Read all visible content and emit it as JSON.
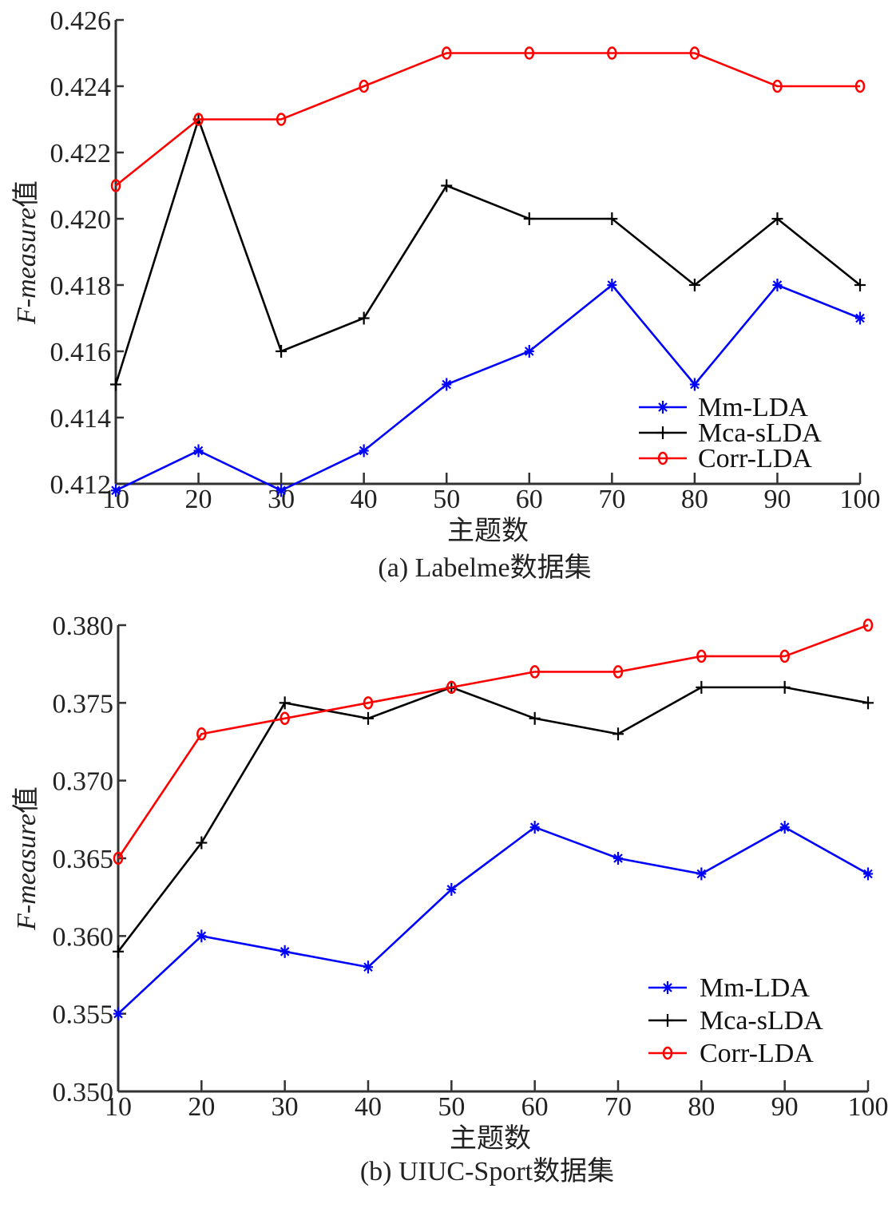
{
  "chart_data": [
    {
      "type": "line",
      "caption": "(a) Labelme数据集",
      "xlabel": "主题数",
      "ylabel_italic": "F-measure",
      "ylabel_suffix": "值",
      "x": [
        10,
        20,
        30,
        40,
        50,
        60,
        70,
        80,
        90,
        100
      ],
      "xticks": [
        "10",
        "20",
        "30",
        "40",
        "50",
        "60",
        "70",
        "80",
        "90",
        "100"
      ],
      "xlim": [
        10,
        100
      ],
      "ylim": [
        0.412,
        0.426
      ],
      "yticks": [
        0.412,
        0.414,
        0.416,
        0.418,
        0.42,
        0.422,
        0.424,
        0.426
      ],
      "ytick_labels": [
        "0.412",
        "0.414",
        "0.416",
        "0.418",
        "0.420",
        "0.422",
        "0.424",
        "0.426"
      ],
      "grid": false,
      "legend_position": "bottom-right",
      "series": [
        {
          "name": "Mm-LDA",
          "color": "#0000ff",
          "marker": "asterisk",
          "values": [
            0.4118,
            0.413,
            0.4118,
            0.413,
            0.415,
            0.416,
            0.418,
            0.415,
            0.418,
            0.417
          ]
        },
        {
          "name": "Mca-sLDA",
          "color": "#000000",
          "marker": "plus",
          "values": [
            0.415,
            0.423,
            0.416,
            0.417,
            0.421,
            0.42,
            0.42,
            0.418,
            0.42,
            0.418
          ]
        },
        {
          "name": "Corr-LDA",
          "color": "#ff0000",
          "marker": "circle",
          "values": [
            0.421,
            0.423,
            0.423,
            0.424,
            0.425,
            0.425,
            0.425,
            0.425,
            0.424,
            0.424
          ]
        }
      ]
    },
    {
      "type": "line",
      "caption": "(b) UIUC-Sport数据集",
      "xlabel": "主题数",
      "ylabel_italic": "F-measure",
      "ylabel_suffix": "值",
      "x": [
        10,
        20,
        30,
        40,
        50,
        60,
        70,
        80,
        90,
        100
      ],
      "xticks": [
        "10",
        "20",
        "30",
        "40",
        "50",
        "60",
        "70",
        "80",
        "90",
        "100"
      ],
      "xlim": [
        10,
        100
      ],
      "ylim": [
        0.35,
        0.38
      ],
      "yticks": [
        0.35,
        0.355,
        0.36,
        0.365,
        0.37,
        0.375,
        0.38
      ],
      "ytick_labels": [
        "0.350",
        "0.355",
        "0.360",
        "0.365",
        "0.370",
        "0.375",
        "0.380"
      ],
      "grid": false,
      "legend_position": "bottom-right",
      "series": [
        {
          "name": "Mm-LDA",
          "color": "#0000ff",
          "marker": "asterisk",
          "values": [
            0.355,
            0.36,
            0.359,
            0.358,
            0.363,
            0.367,
            0.365,
            0.364,
            0.367,
            0.364
          ]
        },
        {
          "name": "Mca-sLDA",
          "color": "#000000",
          "marker": "plus",
          "values": [
            0.359,
            0.366,
            0.375,
            0.374,
            0.376,
            0.374,
            0.373,
            0.376,
            0.376,
            0.375
          ]
        },
        {
          "name": "Corr-LDA",
          "color": "#ff0000",
          "marker": "circle",
          "values": [
            0.365,
            0.373,
            0.374,
            0.375,
            0.376,
            0.377,
            0.377,
            0.378,
            0.378,
            0.38
          ]
        }
      ]
    }
  ]
}
